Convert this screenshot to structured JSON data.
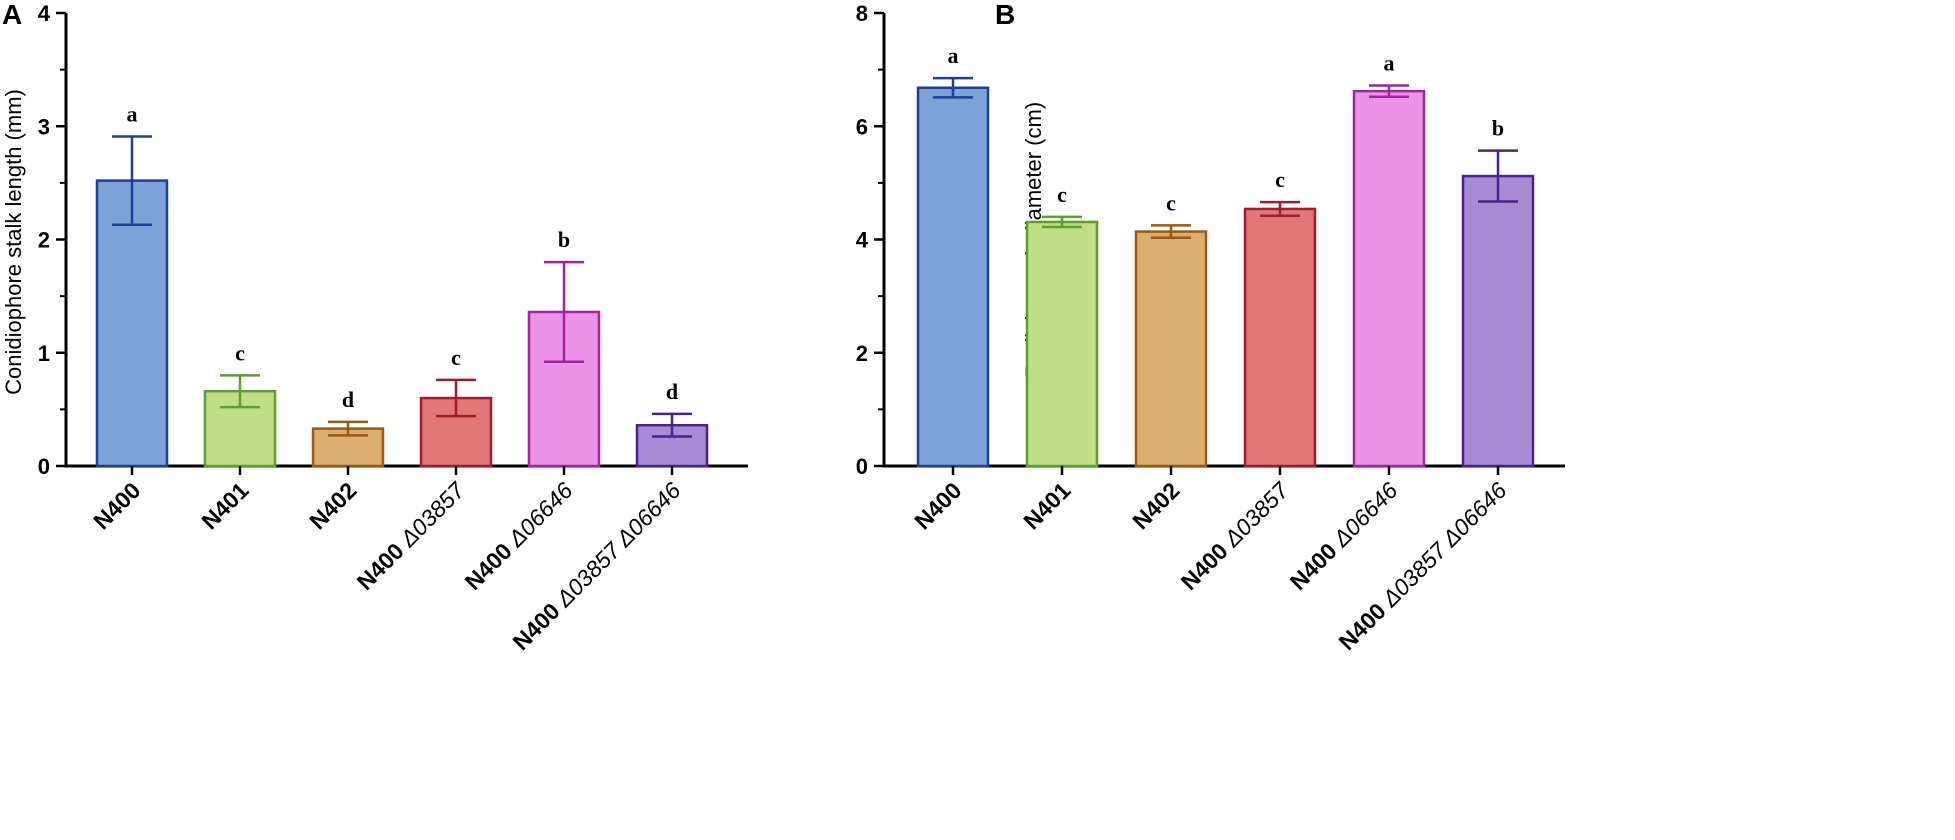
{
  "chart_data": [
    {
      "panel": "A",
      "type": "bar",
      "ylabel": "Conidiophore stalk length (mm)",
      "ylim": [
        0,
        4
      ],
      "yticks": [
        0,
        1,
        2,
        3,
        4
      ],
      "categories": [
        {
          "strain": "N400",
          "mutation": ""
        },
        {
          "strain": "N401",
          "mutation": ""
        },
        {
          "strain": "N402",
          "mutation": ""
        },
        {
          "strain": "N400",
          "mutation": "Δ03857"
        },
        {
          "strain": "N400",
          "mutation": "Δ06646"
        },
        {
          "strain": "N400",
          "mutation": "Δ03857 Δ06646"
        }
      ],
      "values": [
        2.52,
        0.66,
        0.33,
        0.6,
        1.36,
        0.36
      ],
      "errors": [
        0.39,
        0.14,
        0.06,
        0.16,
        0.44,
        0.1
      ],
      "significance": [
        "a",
        "c",
        "d",
        "c",
        "b",
        "d"
      ]
    },
    {
      "panel": "B",
      "type": "bar",
      "ylabel": "Radial growth diameter (cm)",
      "ylim": [
        0,
        8
      ],
      "yticks": [
        0,
        2,
        4,
        6,
        8
      ],
      "categories": [
        {
          "strain": "N400",
          "mutation": ""
        },
        {
          "strain": "N401",
          "mutation": ""
        },
        {
          "strain": "N402",
          "mutation": ""
        },
        {
          "strain": "N400",
          "mutation": "Δ03857"
        },
        {
          "strain": "N400",
          "mutation": "Δ06646"
        },
        {
          "strain": "N400",
          "mutation": "Δ03857 Δ06646"
        }
      ],
      "values": [
        6.68,
        4.31,
        4.14,
        4.54,
        6.62,
        5.12
      ],
      "errors": [
        0.17,
        0.09,
        0.11,
        0.12,
        0.1,
        0.45
      ],
      "significance": [
        "a",
        "c",
        "c",
        "c",
        "a",
        "b"
      ]
    }
  ],
  "colors": {
    "fill": [
      "#7ba3d8",
      "#c0df85",
      "#ddad6e",
      "#e07779",
      "#eb93e8",
      "#a88bd3"
    ],
    "stroke": [
      "#1f3f95",
      "#5aa02a",
      "#9a5a12",
      "#a01b2b",
      "#a0249c",
      "#4b2090"
    ]
  }
}
